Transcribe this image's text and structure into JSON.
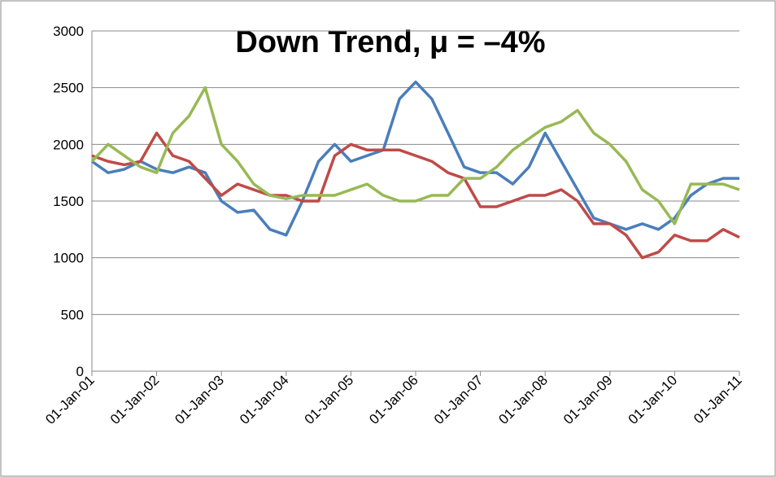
{
  "chart_data": {
    "type": "line",
    "title": "Down Trend, μ = –4%",
    "x": [
      2001,
      2001.25,
      2001.5,
      2001.75,
      2002,
      2002.25,
      2002.5,
      2002.75,
      2003,
      2003.25,
      2003.5,
      2003.75,
      2004,
      2004.25,
      2004.5,
      2004.75,
      2005,
      2005.25,
      2005.5,
      2005.75,
      2006,
      2006.25,
      2006.5,
      2006.75,
      2007,
      2007.25,
      2007.5,
      2007.75,
      2008,
      2008.25,
      2008.5,
      2008.75,
      2009,
      2009.25,
      2009.5,
      2009.75,
      2010,
      2010.25,
      2010.5,
      2010.75,
      2011
    ],
    "series": [
      {
        "color": "#4a7ebb",
        "values": [
          1850,
          1750,
          1780,
          1850,
          1780,
          1750,
          1800,
          1750,
          1500,
          1400,
          1420,
          1250,
          1200,
          1500,
          1850,
          2000,
          1850,
          1900,
          1950,
          2400,
          2550,
          2400,
          2100,
          1800,
          1750,
          1750,
          1650,
          1800,
          2100,
          1850,
          1600,
          1350,
          1300,
          1250,
          1300,
          1250,
          1350,
          1550,
          1650,
          1700,
          1700
        ]
      },
      {
        "color": "#be4b48",
        "values": [
          1900,
          1850,
          1820,
          1850,
          2100,
          1900,
          1850,
          1700,
          1550,
          1650,
          1600,
          1550,
          1550,
          1500,
          1500,
          1900,
          2000,
          1950,
          1950,
          1950,
          1900,
          1850,
          1750,
          1700,
          1450,
          1450,
          1500,
          1550,
          1550,
          1600,
          1500,
          1300,
          1300,
          1200,
          1000,
          1050,
          1200,
          1150,
          1150,
          1250,
          1180
        ]
      },
      {
        "color": "#98b954",
        "values": [
          1850,
          2000,
          1900,
          1800,
          1750,
          2100,
          2250,
          2500,
          2000,
          1850,
          1650,
          1550,
          1520,
          1550,
          1550,
          1550,
          1600,
          1650,
          1550,
          1500,
          1500,
          1550,
          1550,
          1700,
          1700,
          1800,
          1950,
          2050,
          2150,
          2200,
          2300,
          2100,
          2000,
          1850,
          1600,
          1500,
          1300,
          1650,
          1650,
          1650,
          1600
        ]
      }
    ],
    "xlim": [
      2001,
      2011
    ],
    "xticks": [
      {
        "value": 2001,
        "label": "01-Jan-01"
      },
      {
        "value": 2002,
        "label": "01-Jan-02"
      },
      {
        "value": 2003,
        "label": "01-Jan-03"
      },
      {
        "value": 2004,
        "label": "01-Jan-04"
      },
      {
        "value": 2005,
        "label": "01-Jan-05"
      },
      {
        "value": 2006,
        "label": "01-Jan-06"
      },
      {
        "value": 2007,
        "label": "01-Jan-07"
      },
      {
        "value": 2008,
        "label": "01-Jan-08"
      },
      {
        "value": 2009,
        "label": "01-Jan-09"
      },
      {
        "value": 2010,
        "label": "01-Jan-10"
      },
      {
        "value": 2011,
        "label": "01-Jan-11"
      }
    ],
    "ylim": [
      0,
      3000
    ],
    "yticks": [
      0,
      500,
      1000,
      1500,
      2000,
      2500,
      3000
    ],
    "grid": true
  }
}
